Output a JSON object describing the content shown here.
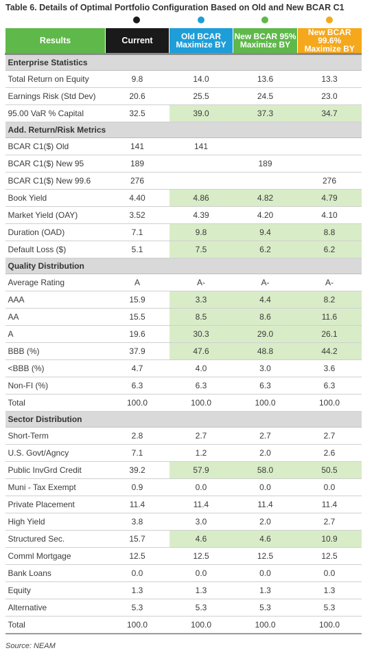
{
  "title": "Table 6. Details of Optimal Portfolio Configuration Based on Old and New BCAR C1",
  "colors": {
    "current": "#1a1a1a",
    "old": "#1e9ed8",
    "new95": "#5fb84a",
    "new996": "#f5a81c",
    "highlight": "#d9ecc8"
  },
  "headers": {
    "results": "Results",
    "current": "Current",
    "old": [
      "Old BCAR",
      "Maximize BY"
    ],
    "new95": [
      "New BCAR 95%",
      "Maximize BY"
    ],
    "new996": [
      "New BCAR 99.6%",
      "Maximize BY"
    ]
  },
  "sections": [
    {
      "title": "Enterprise Statistics",
      "rows": [
        {
          "label": "Total Return on Equity",
          "values": [
            "9.8",
            "14.0",
            "13.6",
            "13.3"
          ],
          "hl": [
            false,
            false,
            false,
            false
          ]
        },
        {
          "label": "Earnings Risk (Std Dev)",
          "values": [
            "20.6",
            "25.5",
            "24.5",
            "23.0"
          ],
          "hl": [
            false,
            false,
            false,
            false
          ]
        },
        {
          "label": "95.00 VaR % Capital",
          "values": [
            "32.5",
            "39.0",
            "37.3",
            "34.7"
          ],
          "hl": [
            false,
            true,
            true,
            true
          ]
        }
      ]
    },
    {
      "title": "Add. Return/Risk Metrics",
      "rows": [
        {
          "label": "BCAR C1($) Old",
          "values": [
            "141",
            "141",
            "",
            ""
          ],
          "hl": [
            false,
            false,
            false,
            false
          ]
        },
        {
          "label": "BCAR C1($) New 95",
          "values": [
            "189",
            "",
            "189",
            ""
          ],
          "hl": [
            false,
            false,
            false,
            false
          ]
        },
        {
          "label": "BCAR C1($) New 99.6",
          "values": [
            "276",
            "",
            "",
            "276"
          ],
          "hl": [
            false,
            false,
            false,
            false
          ]
        },
        {
          "label": "Book Yield",
          "values": [
            "4.40",
            "4.86",
            "4.82",
            "4.79"
          ],
          "hl": [
            false,
            true,
            true,
            true
          ]
        },
        {
          "label": "Market Yield (OAY)",
          "values": [
            "3.52",
            "4.39",
            "4.20",
            "4.10"
          ],
          "hl": [
            false,
            false,
            false,
            false
          ]
        },
        {
          "label": "Duration (OAD)",
          "values": [
            "7.1",
            "9.8",
            "9.4",
            "8.8"
          ],
          "hl": [
            false,
            true,
            true,
            true
          ]
        },
        {
          "label": "Default Loss ($)",
          "values": [
            "5.1",
            "7.5",
            "6.2",
            "6.2"
          ],
          "hl": [
            false,
            true,
            true,
            true
          ]
        }
      ]
    },
    {
      "title": "Quality Distribution",
      "rows": [
        {
          "label": "Average Rating",
          "values": [
            "A",
            "A-",
            "A-",
            "A-"
          ],
          "hl": [
            false,
            false,
            false,
            false
          ]
        },
        {
          "label": "AAA",
          "values": [
            "15.9",
            "3.3",
            "4.4",
            "8.2"
          ],
          "hl": [
            false,
            true,
            true,
            true
          ]
        },
        {
          "label": "AA",
          "values": [
            "15.5",
            "8.5",
            "8.6",
            "11.6"
          ],
          "hl": [
            false,
            true,
            true,
            true
          ]
        },
        {
          "label": "A",
          "values": [
            "19.6",
            "30.3",
            "29.0",
            "26.1"
          ],
          "hl": [
            false,
            true,
            true,
            true
          ]
        },
        {
          "label": "BBB (%)",
          "values": [
            "37.9",
            "47.6",
            "48.8",
            "44.2"
          ],
          "hl": [
            false,
            true,
            true,
            true
          ]
        },
        {
          "label": "<BBB (%)",
          "values": [
            "4.7",
            "4.0",
            "3.0",
            "3.6"
          ],
          "hl": [
            false,
            false,
            false,
            false
          ]
        },
        {
          "label": "Non-FI (%)",
          "values": [
            "6.3",
            "6.3",
            "6.3",
            "6.3"
          ],
          "hl": [
            false,
            false,
            false,
            false
          ]
        },
        {
          "label": "Total",
          "values": [
            "100.0",
            "100.0",
            "100.0",
            "100.0"
          ],
          "hl": [
            false,
            false,
            false,
            false
          ]
        }
      ]
    },
    {
      "title": "Sector Distribution",
      "rows": [
        {
          "label": "Short-Term",
          "values": [
            "2.8",
            "2.7",
            "2.7",
            "2.7"
          ],
          "hl": [
            false,
            false,
            false,
            false
          ]
        },
        {
          "label": "U.S. Govt/Agncy",
          "values": [
            "7.1",
            "1.2",
            "2.0",
            "2.6"
          ],
          "hl": [
            false,
            false,
            false,
            false
          ]
        },
        {
          "label": "Public InvGrd Credit",
          "values": [
            "39.2",
            "57.9",
            "58.0",
            "50.5"
          ],
          "hl": [
            false,
            true,
            true,
            true
          ]
        },
        {
          "label": "Muni - Tax Exempt",
          "values": [
            "0.9",
            "0.0",
            "0.0",
            "0.0"
          ],
          "hl": [
            false,
            false,
            false,
            false
          ]
        },
        {
          "label": "Private Placement",
          "values": [
            "11.4",
            "11.4",
            "11.4",
            "11.4"
          ],
          "hl": [
            false,
            false,
            false,
            false
          ]
        },
        {
          "label": "High Yield",
          "values": [
            "3.8",
            "3.0",
            "2.0",
            "2.7"
          ],
          "hl": [
            false,
            false,
            false,
            false
          ]
        },
        {
          "label": "Structured Sec.",
          "values": [
            "15.7",
            "4.6",
            "4.6",
            "10.9"
          ],
          "hl": [
            false,
            true,
            true,
            true
          ]
        },
        {
          "label": "Comml Mortgage",
          "values": [
            "12.5",
            "12.5",
            "12.5",
            "12.5"
          ],
          "hl": [
            false,
            false,
            false,
            false
          ]
        },
        {
          "label": "Bank Loans",
          "values": [
            "0.0",
            "0.0",
            "0.0",
            "0.0"
          ],
          "hl": [
            false,
            false,
            false,
            false
          ]
        },
        {
          "label": "Equity",
          "values": [
            "1.3",
            "1.3",
            "1.3",
            "1.3"
          ],
          "hl": [
            false,
            false,
            false,
            false
          ]
        },
        {
          "label": "Alternative",
          "values": [
            "5.3",
            "5.3",
            "5.3",
            "5.3"
          ],
          "hl": [
            false,
            false,
            false,
            false
          ]
        },
        {
          "label": "Total",
          "values": [
            "100.0",
            "100.0",
            "100.0",
            "100.0"
          ],
          "hl": [
            false,
            false,
            false,
            false
          ]
        }
      ]
    }
  ],
  "source": "Source: NEAM"
}
